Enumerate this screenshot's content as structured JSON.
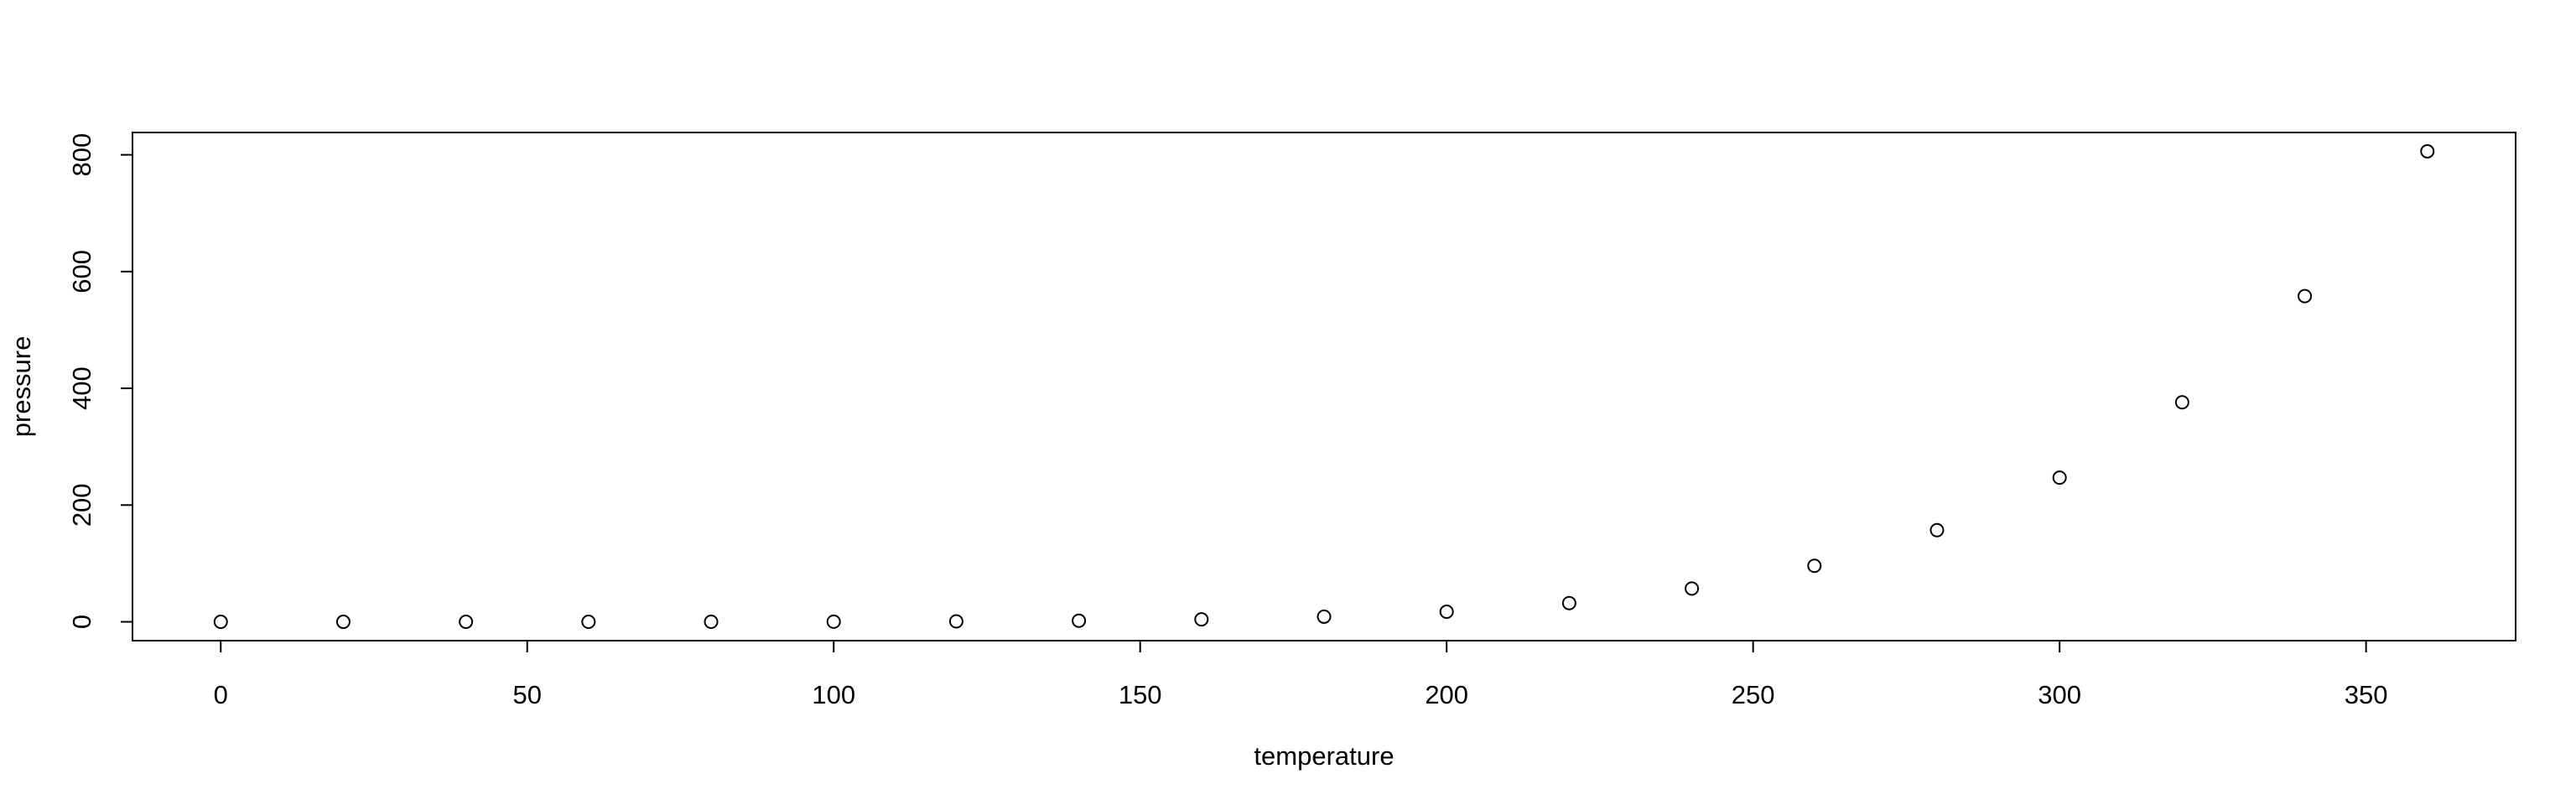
{
  "chart_data": {
    "type": "scatter",
    "title": "",
    "xlabel": "temperature",
    "ylabel": "pressure",
    "x": [
      0,
      20,
      40,
      60,
      80,
      100,
      120,
      140,
      160,
      180,
      200,
      220,
      240,
      260,
      280,
      300,
      320,
      340,
      360
    ],
    "y": [
      0.0002,
      0.0012,
      0.006,
      0.03,
      0.09,
      0.27,
      0.75,
      1.85,
      4.2,
      8.8,
      17.3,
      32.1,
      57,
      96,
      157,
      247,
      376,
      558,
      806
    ],
    "xlim": [
      -14.4,
      374.4
    ],
    "ylim": [
      -32.24,
      838.24
    ],
    "xticks": [
      0,
      50,
      100,
      150,
      200,
      250,
      300,
      350
    ],
    "yticks": [
      0,
      200,
      400,
      600,
      800
    ],
    "xtick_labels": [
      "0",
      "50",
      "100",
      "150",
      "200",
      "250",
      "300",
      "350"
    ],
    "ytick_labels": [
      "0",
      "200",
      "400",
      "600",
      "800"
    ],
    "marker": "open-circle",
    "grid": false,
    "legend": "none",
    "colors": {
      "points": "#000000",
      "axes": "#000000",
      "background": "#ffffff"
    }
  }
}
